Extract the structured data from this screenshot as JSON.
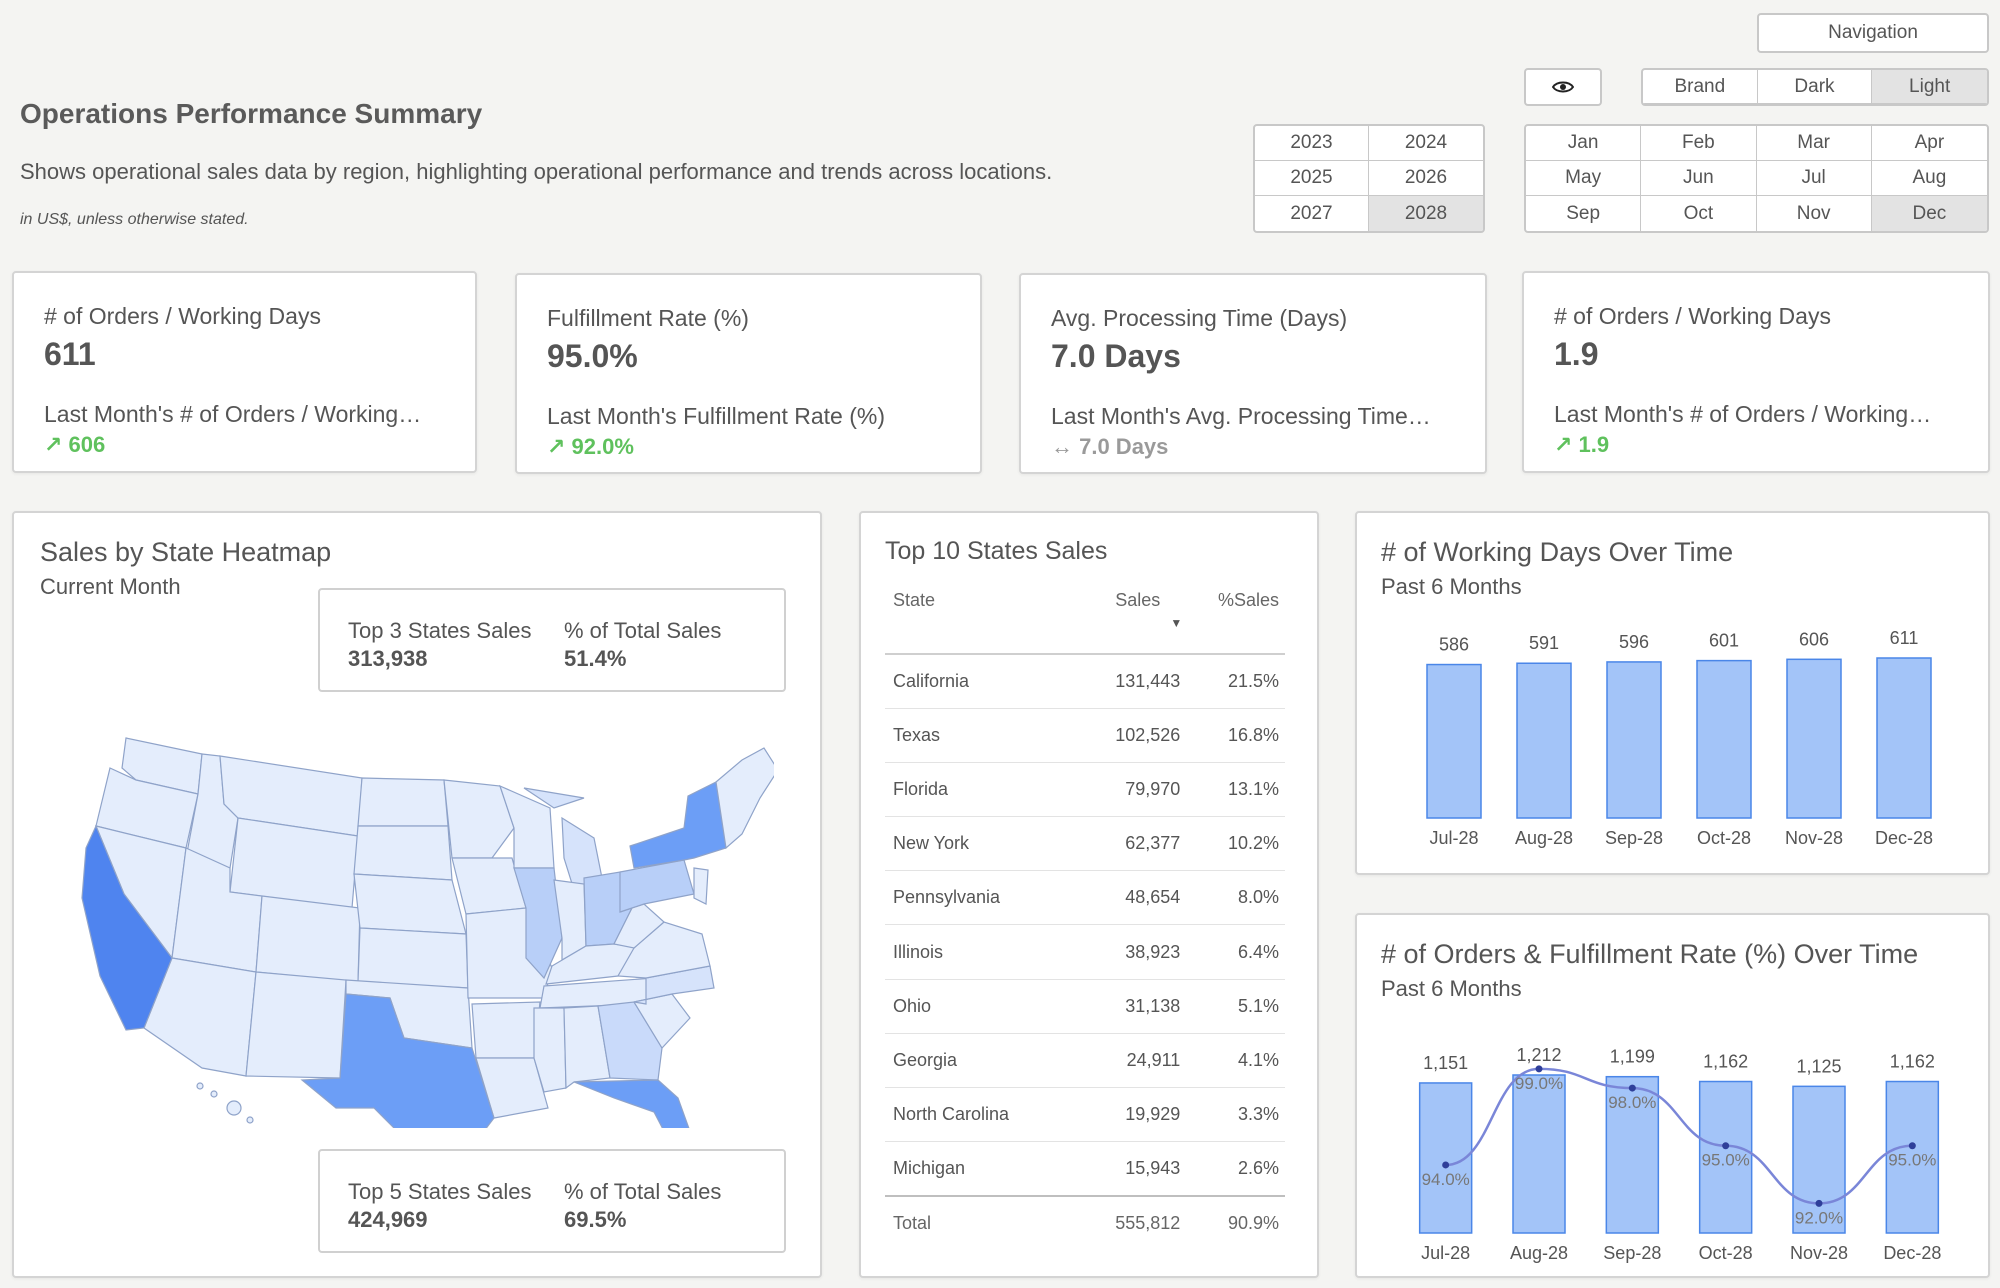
{
  "header": {
    "title": "Operations Performance Summary",
    "description": "Shows operational sales data by region, highlighting operational performance and trends across locations.",
    "note": "in US$, unless otherwise stated."
  },
  "controls": {
    "navigation_label": "Navigation",
    "eye_icon": "eye-icon",
    "themes": [
      {
        "label": "Brand",
        "selected": false
      },
      {
        "label": "Dark",
        "selected": false
      },
      {
        "label": "Light",
        "selected": true
      }
    ],
    "years": [
      {
        "label": "2023",
        "selected": false
      },
      {
        "label": "2024",
        "selected": false
      },
      {
        "label": "2025",
        "selected": false
      },
      {
        "label": "2026",
        "selected": false
      },
      {
        "label": "2027",
        "selected": false
      },
      {
        "label": "2028",
        "selected": true
      }
    ],
    "months": [
      {
        "label": "Jan",
        "selected": false
      },
      {
        "label": "Feb",
        "selected": false
      },
      {
        "label": "Mar",
        "selected": false
      },
      {
        "label": "Apr",
        "selected": false
      },
      {
        "label": "May",
        "selected": false
      },
      {
        "label": "Jun",
        "selected": false
      },
      {
        "label": "Jul",
        "selected": false
      },
      {
        "label": "Aug",
        "selected": false
      },
      {
        "label": "Sep",
        "selected": false
      },
      {
        "label": "Oct",
        "selected": false
      },
      {
        "label": "Nov",
        "selected": false
      },
      {
        "label": "Dec",
        "selected": true
      }
    ]
  },
  "kpis": [
    {
      "title": "# of Orders / Working Days",
      "value": "611",
      "sub": "Last Month's # of Orders / Working…",
      "delta": "↗ 606",
      "trend": "up"
    },
    {
      "title": "Fulfillment Rate (%)",
      "value": "95.0%",
      "sub": "Last Month's Fulfillment Rate (%)",
      "delta": "↗ 92.0%",
      "trend": "up"
    },
    {
      "title": "Avg. Processing Time (Days)",
      "value": "7.0 Days",
      "sub": "Last Month's Avg. Processing Time…",
      "delta": "↔ 7.0 Days",
      "trend": "flat"
    },
    {
      "title": "# of Orders / Working Days",
      "value": "1.9",
      "sub": "Last Month's # of Orders / Working…",
      "delta": "↗ 1.9",
      "trend": "up"
    }
  ],
  "heatmap": {
    "title": "Sales by State Heatmap",
    "subtitle": "Current Month",
    "top3": {
      "label": "Top 3 States Sales",
      "value": "313,938",
      "pct_label": "% of Total Sales",
      "pct_value": "51.4%"
    },
    "top5": {
      "label": "Top 5 States Sales",
      "value": "424,969",
      "pct_label": "% of Total Sales",
      "pct_value": "69.5%"
    }
  },
  "top_states": {
    "title": "Top 10 States Sales",
    "columns": {
      "state": "State",
      "sales": "Sales",
      "pct": "%Sales"
    },
    "rows": [
      {
        "state": "California",
        "sales": "131,443",
        "pct": "21.5%"
      },
      {
        "state": "Texas",
        "sales": "102,526",
        "pct": "16.8%"
      },
      {
        "state": "Florida",
        "sales": "79,970",
        "pct": "13.1%"
      },
      {
        "state": "New York",
        "sales": "62,377",
        "pct": "10.2%"
      },
      {
        "state": "Pennsylvania",
        "sales": "48,654",
        "pct": "8.0%"
      },
      {
        "state": "Illinois",
        "sales": "38,923",
        "pct": "6.4%"
      },
      {
        "state": "Ohio",
        "sales": "31,138",
        "pct": "5.1%"
      },
      {
        "state": "Georgia",
        "sales": "24,911",
        "pct": "4.1%"
      },
      {
        "state": "North Carolina",
        "sales": "19,929",
        "pct": "3.3%"
      },
      {
        "state": "Michigan",
        "sales": "15,943",
        "pct": "2.6%"
      }
    ],
    "total": {
      "state": "Total",
      "sales": "555,812",
      "pct": "90.9%"
    }
  },
  "colors": {
    "bar_fill": "#a3c4f8",
    "bar_stroke": "#4a86e8",
    "line": "#7a86d8",
    "state_base": "#e4edfc",
    "state_high": "#4f84ef",
    "state_mid": "#6c9ef6",
    "state_low": "#b8cff8"
  },
  "chart_data": [
    {
      "type": "bar",
      "title": "# of Working Days Over Time",
      "subtitle": "Past 6 Months",
      "categories": [
        "Jul-28",
        "Aug-28",
        "Sep-28",
        "Oct-28",
        "Nov-28",
        "Dec-28"
      ],
      "values": [
        586,
        591,
        596,
        601,
        606,
        611
      ],
      "labels": [
        "586",
        "591",
        "596",
        "601",
        "606",
        "611"
      ],
      "ylim": [
        0,
        611
      ]
    },
    {
      "type": "bar",
      "title": "# of Orders & Fulfillment Rate (%) Over Time",
      "subtitle": "Past 6 Months",
      "categories": [
        "Jul-28",
        "Aug-28",
        "Sep-28",
        "Oct-28",
        "Nov-28",
        "Dec-28"
      ],
      "series": [
        {
          "name": "# of Orders",
          "kind": "bar",
          "values": [
            1151,
            1212,
            1199,
            1162,
            1125,
            1162
          ],
          "labels": [
            "1,151",
            "1,212",
            "1,199",
            "1,162",
            "1,125",
            "1,162"
          ]
        },
        {
          "name": "Fulfillment Rate (%)",
          "kind": "line",
          "values": [
            94.0,
            99.0,
            98.0,
            95.0,
            92.0,
            95.0
          ],
          "labels": [
            "94.0%",
            "99.0%",
            "98.0%",
            "95.0%",
            "92.0%",
            "95.0%"
          ]
        }
      ],
      "ylim": [
        0,
        1212
      ],
      "y2lim": [
        91.5,
        99.2
      ]
    }
  ]
}
